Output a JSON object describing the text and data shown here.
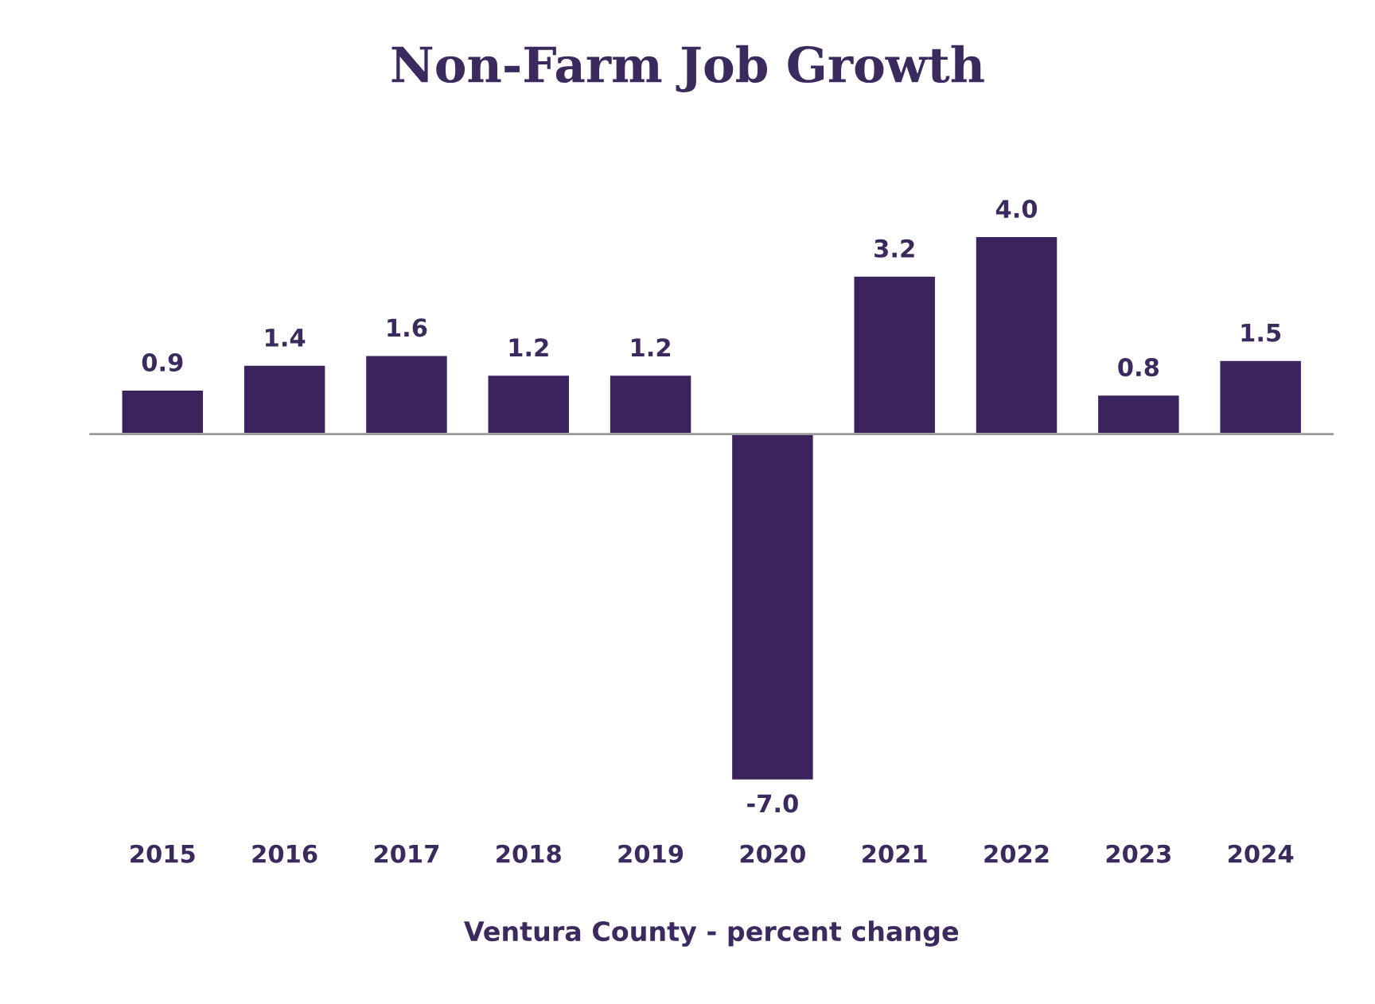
{
  "chart_data": {
    "type": "bar",
    "title": "Non-Farm Job Growth",
    "xlabel": "Ventura County - percent change",
    "categories": [
      "2015",
      "2016",
      "2017",
      "2018",
      "2019",
      "2020",
      "2021",
      "2022",
      "2023",
      "2024"
    ],
    "values": [
      0.9,
      1.4,
      1.6,
      1.2,
      1.2,
      -7.0,
      3.2,
      4.0,
      0.8,
      1.5
    ],
    "value_labels": [
      "0.9",
      "1.4",
      "1.6",
      "1.2",
      "1.2",
      "-7.0",
      "3.2",
      "4.0",
      "0.8",
      "1.5"
    ],
    "color": "#3b235e",
    "grid": false,
    "legend": false
  }
}
